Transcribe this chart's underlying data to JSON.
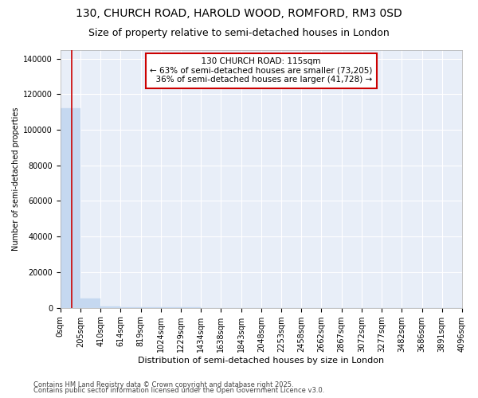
{
  "title": "130, CHURCH ROAD, HAROLD WOOD, ROMFORD, RM3 0SD",
  "subtitle": "Size of property relative to semi-detached houses in London",
  "xlabel": "Distribution of semi-detached houses by size in London",
  "ylabel": "Number of semi-detached properties",
  "property_size": 115,
  "property_label": "130 CHURCH ROAD: 115sqm",
  "pct_smaller": 63,
  "count_smaller": 73205,
  "pct_larger": 36,
  "count_larger": 41728,
  "bar_values": [
    112000,
    5000,
    800,
    300,
    150,
    80,
    50,
    30,
    20,
    15,
    10,
    8,
    6,
    5,
    4,
    3,
    2,
    2,
    1,
    1,
    0
  ],
  "bin_edges": [
    0,
    205,
    410,
    614,
    819,
    1024,
    1229,
    1434,
    1638,
    1843,
    2048,
    2253,
    2458,
    2662,
    2867,
    3072,
    3277,
    3482,
    3686,
    3891,
    4096
  ],
  "x_tick_labels": [
    "0sqm",
    "205sqm",
    "410sqm",
    "614sqm",
    "819sqm",
    "1024sqm",
    "1229sqm",
    "1434sqm",
    "1638sqm",
    "1843sqm",
    "2048sqm",
    "2253sqm",
    "2458sqm",
    "2662sqm",
    "2867sqm",
    "3072sqm",
    "3277sqm",
    "3482sqm",
    "3686sqm",
    "3891sqm",
    "4096sqm"
  ],
  "bar_color": "#c5d8f0",
  "bar_edge_color": "#c5d8f0",
  "vline_color": "#cc0000",
  "plot_bg_color": "#e8eef8",
  "background_color": "#ffffff",
  "grid_color": "#ffffff",
  "annotation_box_color": "#ffffff",
  "annotation_box_edge": "#cc0000",
  "footer_line1": "Contains HM Land Registry data © Crown copyright and database right 2025.",
  "footer_line2": "Contains public sector information licensed under the Open Government Licence v3.0.",
  "ylim": [
    0,
    145000
  ],
  "yticks": [
    0,
    20000,
    40000,
    60000,
    80000,
    100000,
    120000,
    140000
  ],
  "title_fontsize": 10,
  "subtitle_fontsize": 9,
  "tick_fontsize": 7,
  "ylabel_fontsize": 7,
  "xlabel_fontsize": 8,
  "footer_fontsize": 6,
  "ann_fontsize": 7.5
}
